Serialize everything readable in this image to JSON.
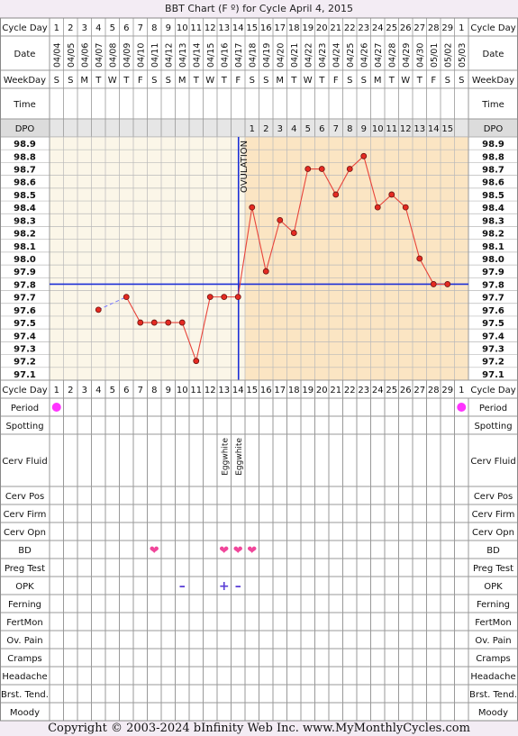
{
  "title": "BBT Chart (F º) for Cycle April 4, 2015",
  "footer": "Copyright © 2003-2024 bInfinity Web Inc.     www.MyMonthlyCycles.com",
  "ovulation_label": "OVULATION",
  "labels": {
    "cycle_day": "Cycle Day",
    "date": "Date",
    "weekday": "WeekDay",
    "time": "Time",
    "dpo": "DPO"
  },
  "cycle_days": [
    "1",
    "2",
    "3",
    "4",
    "5",
    "6",
    "7",
    "8",
    "9",
    "10",
    "11",
    "12",
    "13",
    "14",
    "15",
    "16",
    "17",
    "18",
    "19",
    "20",
    "21",
    "22",
    "23",
    "24",
    "25",
    "26",
    "27",
    "28",
    "29",
    "1"
  ],
  "dates": [
    "04/04",
    "04/05",
    "04/06",
    "04/07",
    "04/08",
    "04/09",
    "04/10",
    "04/11",
    "04/12",
    "04/13",
    "04/14",
    "04/15",
    "04/16",
    "04/17",
    "04/18",
    "04/19",
    "04/20",
    "04/21",
    "04/22",
    "04/23",
    "04/24",
    "04/25",
    "04/26",
    "04/27",
    "04/28",
    "04/29",
    "04/30",
    "05/01",
    "05/02",
    "05/03"
  ],
  "weekdays": [
    "S",
    "S",
    "M",
    "T",
    "W",
    "T",
    "F",
    "S",
    "S",
    "M",
    "T",
    "W",
    "T",
    "F",
    "S",
    "S",
    "M",
    "T",
    "W",
    "T",
    "F",
    "S",
    "S",
    "M",
    "T",
    "W",
    "T",
    "F",
    "S",
    "S"
  ],
  "dpo": [
    "",
    "",
    "",
    "",
    "",
    "",
    "",
    "",
    "",
    "",
    "",
    "",
    "",
    "",
    "1",
    "2",
    "3",
    "4",
    "5",
    "6",
    "7",
    "8",
    "9",
    "10",
    "11",
    "12",
    "13",
    "14",
    "15",
    ""
  ],
  "temp_labels": [
    "98.9",
    "98.8",
    "98.7",
    "98.6",
    "98.5",
    "98.4",
    "98.3",
    "98.2",
    "98.1",
    "98.0",
    "97.9",
    "97.8",
    "97.7",
    "97.6",
    "97.5",
    "97.4",
    "97.3",
    "97.2",
    "97.1"
  ],
  "rows": [
    {
      "label": "Period",
      "type": "period",
      "marks": [
        1,
        30
      ]
    },
    {
      "label": "Spotting",
      "type": "empty"
    },
    {
      "label": "Cerv Fluid",
      "type": "text",
      "entries": [
        {
          "day": 13,
          "text": "Eggwhite"
        },
        {
          "day": 14,
          "text": "Eggwhite"
        }
      ]
    },
    {
      "label": "Cerv Pos",
      "type": "empty"
    },
    {
      "label": "Cerv Firm",
      "type": "empty"
    },
    {
      "label": "Cerv Opn",
      "type": "empty"
    },
    {
      "label": "BD",
      "type": "heart",
      "marks": [
        8,
        13,
        14,
        15
      ]
    },
    {
      "label": "Preg Test",
      "type": "empty"
    },
    {
      "label": "OPK",
      "type": "opk",
      "entries": [
        {
          "day": 10,
          "sign": "–"
        },
        {
          "day": 13,
          "sign": "+"
        },
        {
          "day": 14,
          "sign": "–"
        }
      ]
    },
    {
      "label": "Ferning",
      "type": "empty"
    },
    {
      "label": "FertMon",
      "type": "empty"
    },
    {
      "label": "Ov. Pain",
      "type": "empty"
    },
    {
      "label": "Cramps",
      "type": "empty"
    },
    {
      "label": "Headache",
      "type": "empty"
    },
    {
      "label": "Brst. Tend.",
      "type": "empty"
    },
    {
      "label": "Moody",
      "type": "empty"
    }
  ],
  "chart_data": {
    "type": "line",
    "title": "BBT Chart (F º) for Cycle April 4, 2015",
    "xlabel": "Cycle Day",
    "ylabel": "",
    "ylim": [
      97.1,
      98.9
    ],
    "coverline": 97.8,
    "ovulation_day": 14,
    "series": [
      {
        "x": [
          4,
          6,
          7,
          8,
          9,
          10,
          11,
          12,
          13,
          14,
          15,
          16,
          17,
          18,
          19,
          20,
          21,
          22,
          23,
          24,
          25,
          26,
          27,
          28,
          29
        ],
        "values": [
          97.6,
          97.7,
          97.5,
          97.5,
          97.5,
          97.5,
          97.2,
          97.7,
          97.7,
          97.7,
          98.4,
          97.9,
          98.3,
          98.2,
          98.7,
          98.7,
          98.5,
          98.7,
          98.8,
          98.4,
          98.5,
          98.4,
          98.0,
          97.8,
          97.8
        ]
      }
    ],
    "colors": {
      "line": "#e8443a",
      "coverline": "#1c2fd6",
      "ovulation": "#1c2fd6",
      "pre_bg": "#fbf6e8",
      "post_bg": "#fbe5c3",
      "period": "#ff33ff",
      "heart": "#f0469a",
      "grid": "#b9b9b9"
    }
  }
}
